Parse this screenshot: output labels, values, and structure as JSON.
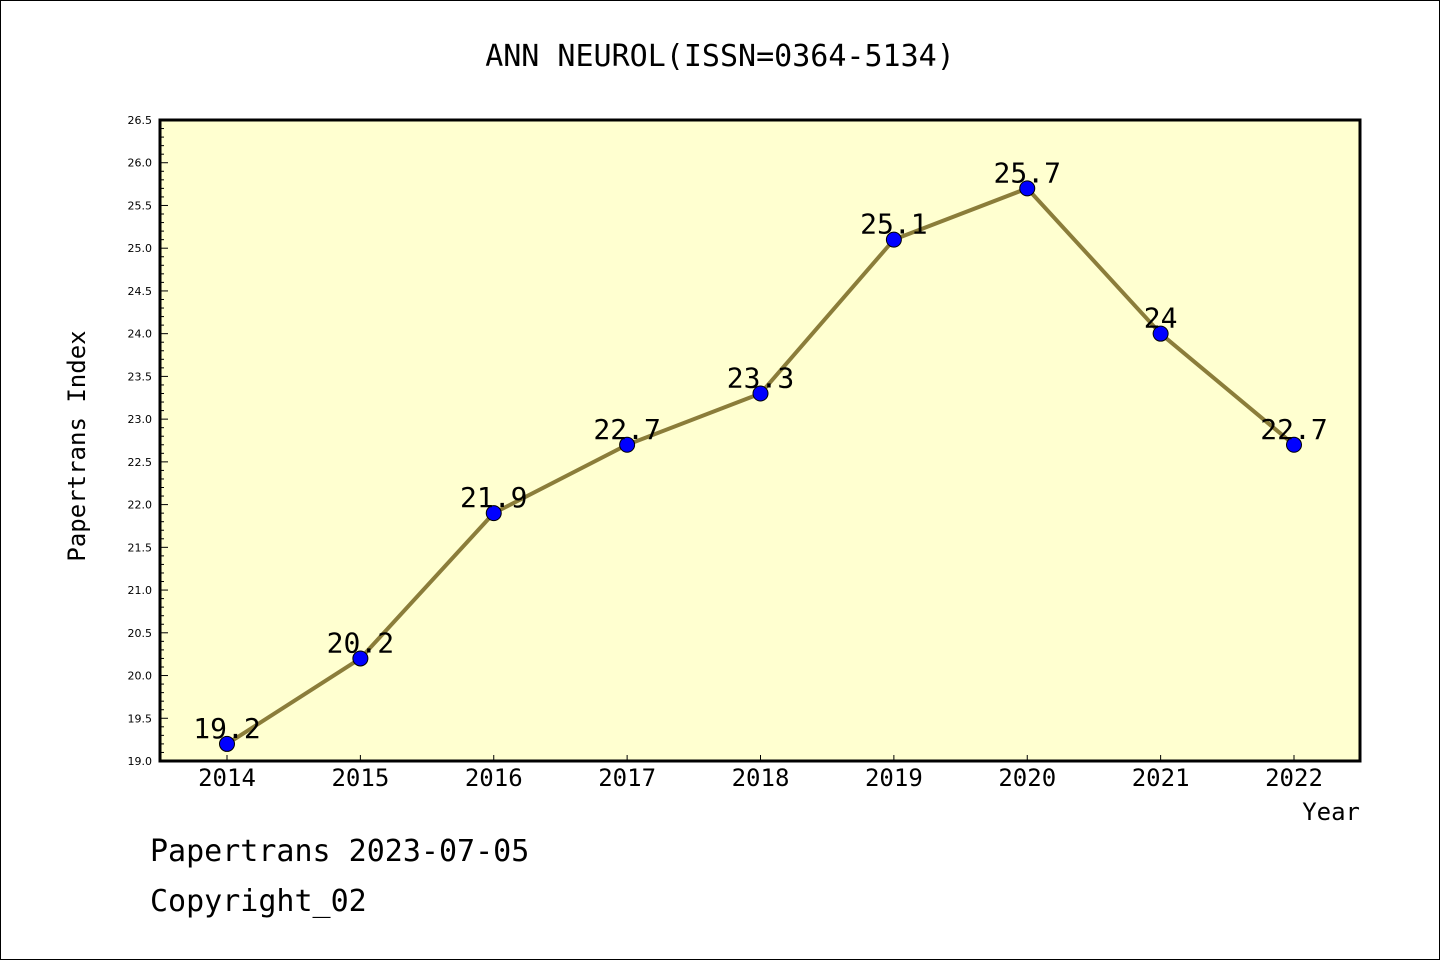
{
  "chart_data": {
    "type": "line",
    "title": "ANN NEUROL(ISSN=0364-5134)",
    "xlabel": "Year",
    "ylabel": "Papertrans Index",
    "x": [
      "2014",
      "2015",
      "2016",
      "2017",
      "2018",
      "2019",
      "2020",
      "2021",
      "2022"
    ],
    "series": [
      {
        "values": [
          19.2,
          20.2,
          21.9,
          22.7,
          23.3,
          25.1,
          25.7,
          24,
          22.7
        ],
        "labels": [
          "19.2",
          "20.2",
          "21.9",
          "22.7",
          "23.3",
          "25.1",
          "25.7",
          "24",
          "22.7"
        ]
      }
    ],
    "ylim": [
      19.0,
      26.5
    ],
    "yticks": [
      "19.0",
      "19.5",
      "20.0",
      "20.5",
      "21.0",
      "21.5",
      "22.0",
      "22.5",
      "23.0",
      "23.5",
      "24.0",
      "24.5",
      "25.0",
      "25.5",
      "26.0",
      "26.5"
    ],
    "grid": false,
    "colors": {
      "plot_background": "#FFFFD0",
      "line": "#8B7D3A",
      "marker": "#0000FF"
    }
  },
  "footer": {
    "line1": "Papertrans 2023-07-05",
    "line2": "Copyright_02"
  }
}
